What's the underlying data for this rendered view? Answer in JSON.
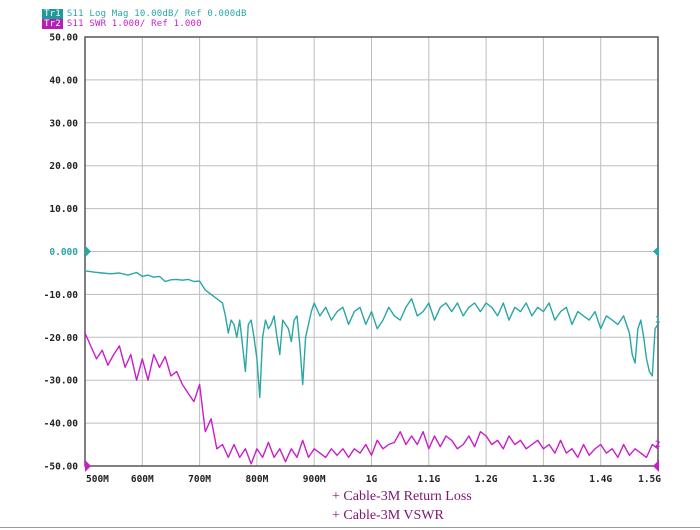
{
  "header": {
    "trace1_tag": "Tr1",
    "trace1_text": "S11 Log Mag 10.00dB/ Ref 0.000dB",
    "trace2_tag": "Tr2",
    "trace2_text": "S11 SWR 1.000/ Ref 1.000"
  },
  "legend": {
    "item1": "+ Cable-3M Return Loss",
    "item2": "+ Cable-3M VSWR"
  },
  "colors": {
    "trace1": "#2aa6a6",
    "trace2": "#c81ec8",
    "tag1_bg": "#1f9a9a",
    "tag2_bg": "#b51fb5",
    "grid": "#bdbdbd",
    "frame": "#555555"
  },
  "chart_data": {
    "type": "line",
    "x_unit": "MHz",
    "xlim": [
      500,
      1500
    ],
    "ylim": [
      -50,
      50
    ],
    "grid": true,
    "yticks": [
      50,
      40,
      30,
      20,
      10,
      0,
      -10,
      -20,
      -30,
      -40,
      -50
    ],
    "ytick_labels": [
      "50.00",
      "40.00",
      "30.00",
      "20.00",
      "10.00",
      "0.000",
      "-10.00",
      "-20.00",
      "-30.00",
      "-40.00",
      "-50.00"
    ],
    "xticks": [
      500,
      600,
      700,
      800,
      900,
      1000,
      1100,
      1200,
      1300,
      1400,
      1500
    ],
    "xtick_labels": [
      "500M",
      "600M",
      "700M",
      "800M",
      "900M",
      "1G",
      "1.1G",
      "1.2G",
      "1.3G",
      "1.4G",
      "1.5G"
    ],
    "series": [
      {
        "name": "Cable-3M Return Loss",
        "marker": "1",
        "x": [
          500,
          515,
          530,
          545,
          560,
          575,
          590,
          600,
          610,
          620,
          630,
          640,
          650,
          660,
          670,
          680,
          690,
          700,
          710,
          720,
          730,
          740,
          745,
          750,
          755,
          760,
          765,
          770,
          775,
          780,
          785,
          790,
          795,
          800,
          805,
          810,
          815,
          820,
          825,
          830,
          835,
          840,
          845,
          850,
          855,
          860,
          865,
          870,
          875,
          880,
          885,
          890,
          895,
          900,
          910,
          920,
          930,
          940,
          950,
          960,
          970,
          980,
          990,
          1000,
          1010,
          1020,
          1030,
          1040,
          1050,
          1060,
          1070,
          1080,
          1090,
          1100,
          1110,
          1120,
          1130,
          1140,
          1150,
          1160,
          1170,
          1180,
          1190,
          1200,
          1210,
          1220,
          1230,
          1240,
          1250,
          1260,
          1270,
          1280,
          1290,
          1300,
          1310,
          1320,
          1330,
          1340,
          1350,
          1360,
          1370,
          1380,
          1390,
          1400,
          1410,
          1420,
          1430,
          1440,
          1450,
          1455,
          1460,
          1465,
          1470,
          1475,
          1480,
          1485,
          1490,
          1495,
          1500
        ],
        "y": [
          -4.5,
          -4.8,
          -5.0,
          -5.2,
          -5.0,
          -5.5,
          -4.9,
          -5.8,
          -5.5,
          -6.0,
          -5.8,
          -7.0,
          -6.6,
          -6.5,
          -6.7,
          -6.5,
          -7.0,
          -6.9,
          -9.0,
          -10.0,
          -11.0,
          -12.0,
          -15.0,
          -19.0,
          -16.0,
          -17.0,
          -20.0,
          -16.0,
          -22.0,
          -28.0,
          -17.0,
          -16.0,
          -20.0,
          -25.0,
          -34.0,
          -20.0,
          -16.0,
          -18.0,
          -17.0,
          -15.0,
          -20.0,
          -24.0,
          -16.0,
          -17.0,
          -18.0,
          -21.0,
          -16.0,
          -15.0,
          -22.0,
          -31.0,
          -20.0,
          -17.0,
          -14.0,
          -12.0,
          -15.0,
          -13.0,
          -16.0,
          -14.0,
          -13.0,
          -17.0,
          -14.0,
          -13.0,
          -17.0,
          -14.0,
          -18.0,
          -16.0,
          -13.0,
          -15.0,
          -16.0,
          -13.0,
          -11.0,
          -15.0,
          -14.0,
          -12.0,
          -16.0,
          -13.0,
          -12.0,
          -14.0,
          -12.0,
          -15.0,
          -13.0,
          -12.0,
          -14.0,
          -12.0,
          -13.0,
          -15.0,
          -12.0,
          -16.0,
          -13.0,
          -14.0,
          -12.0,
          -15.0,
          -13.0,
          -14.0,
          -12.0,
          -16.0,
          -14.0,
          -13.0,
          -17.0,
          -14.0,
          -15.0,
          -16.0,
          -14.0,
          -18.0,
          -15.0,
          -16.0,
          -17.0,
          -15.0,
          -19.0,
          -24.0,
          -26.0,
          -18.0,
          -16.0,
          -20.0,
          -25.0,
          -28.0,
          -29.0,
          -18.0,
          -17.0
        ]
      },
      {
        "name": "Cable-3M VSWR",
        "marker": "2",
        "x": [
          500,
          510,
          520,
          530,
          540,
          550,
          560,
          570,
          580,
          590,
          600,
          610,
          620,
          630,
          640,
          650,
          660,
          670,
          680,
          690,
          700,
          710,
          720,
          730,
          740,
          750,
          760,
          770,
          780,
          790,
          800,
          810,
          820,
          830,
          840,
          850,
          860,
          870,
          880,
          890,
          900,
          910,
          920,
          930,
          940,
          950,
          960,
          970,
          980,
          990,
          1000,
          1010,
          1020,
          1030,
          1040,
          1050,
          1060,
          1070,
          1080,
          1090,
          1100,
          1110,
          1120,
          1130,
          1140,
          1150,
          1160,
          1170,
          1180,
          1190,
          1200,
          1210,
          1220,
          1230,
          1240,
          1250,
          1260,
          1270,
          1280,
          1290,
          1300,
          1310,
          1320,
          1330,
          1340,
          1350,
          1360,
          1370,
          1380,
          1390,
          1400,
          1410,
          1420,
          1430,
          1440,
          1450,
          1460,
          1470,
          1480,
          1490,
          1500
        ],
        "y": [
          -19.0,
          -22.0,
          -25.0,
          -23.0,
          -26.5,
          -24.0,
          -22.0,
          -27.0,
          -24.0,
          -30.0,
          -25.0,
          -30.0,
          -24.0,
          -27.0,
          -24.5,
          -29.0,
          -28.0,
          -31.0,
          -33.0,
          -35.0,
          -31.0,
          -42.0,
          -39.0,
          -46.0,
          -45.0,
          -48.0,
          -45.0,
          -48.0,
          -46.0,
          -49.5,
          -46.0,
          -48.0,
          -44.5,
          -48.0,
          -46.0,
          -49.0,
          -46.0,
          -48.0,
          -44.0,
          -48.0,
          -46.0,
          -47.0,
          -48.0,
          -46.0,
          -47.5,
          -46.0,
          -48.0,
          -46.0,
          -47.0,
          -45.0,
          -47.5,
          -44.0,
          -46.0,
          -45.0,
          -44.5,
          -42.0,
          -45.0,
          -43.0,
          -45.0,
          -42.0,
          -46.0,
          -43.0,
          -45.5,
          -43.0,
          -44.0,
          -46.0,
          -45.0,
          -43.0,
          -45.5,
          -42.0,
          -43.0,
          -45.0,
          -44.0,
          -46.0,
          -43.0,
          -45.0,
          -44.0,
          -46.0,
          -45.0,
          -44.0,
          -46.0,
          -45.0,
          -47.0,
          -44.0,
          -47.0,
          -46.0,
          -48.0,
          -45.0,
          -47.5,
          -46.0,
          -45.0,
          -47.0,
          -46.0,
          -48.0,
          -45.0,
          -47.5,
          -46.0,
          -47.0,
          -48.0,
          -45.0,
          -46.0
        ]
      }
    ]
  }
}
